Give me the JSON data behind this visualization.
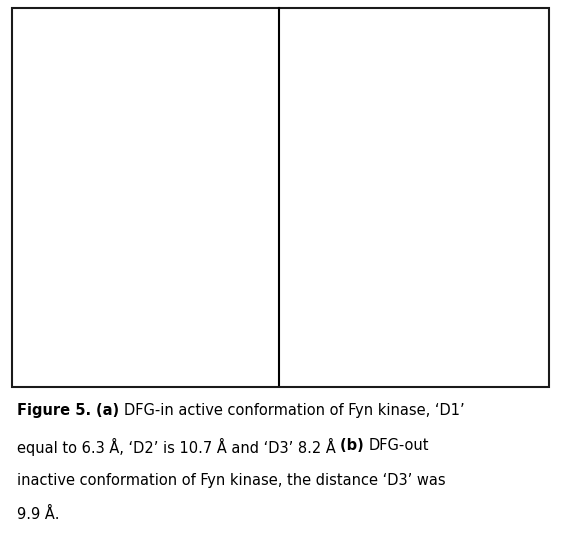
{
  "figsize": [
    5.61,
    5.49
  ],
  "dpi": 100,
  "outer_border_color": "#7dc36b",
  "inner_border_color": "#1a1a1a",
  "background_color": "#ffffff",
  "label_a": "(a)",
  "label_b": "(b)",
  "caption_fontsize": 10.5,
  "caption_lines": [
    [
      {
        "text": "Figure 5. ",
        "bold": true
      },
      {
        "text": "(a) ",
        "bold": true
      },
      {
        "text": "DFG-in active conformation of Fyn kinase, ‘D1’",
        "bold": false
      }
    ],
    [
      {
        "text": "equal to 6.3 Å, ‘D2’ is 10.7 Å and ‘D3’ 8.2 Å ",
        "bold": false
      },
      {
        "text": "(b) ",
        "bold": true
      },
      {
        "text": "DFG-out",
        "bold": false
      }
    ],
    [
      {
        "text": "inactive conformation of Fyn kinase, the distance ‘D3’ was",
        "bold": false
      }
    ],
    [
      {
        "text": "9.9 Å.",
        "bold": false
      }
    ]
  ]
}
